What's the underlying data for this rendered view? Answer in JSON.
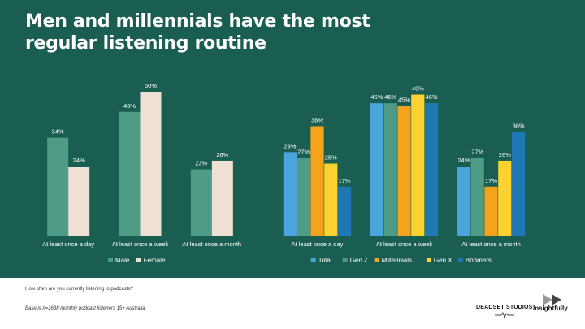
{
  "title": "Men and millennials have the most regular listening routine",
  "footer": {
    "question": "How often are you currently listening to podcasts?",
    "base": "Base is n=1638 monthly podcast listeners 15+ Australia"
  },
  "logos": {
    "deadset": "DEADSET STUDIOS",
    "insightfully": "Insightfully"
  },
  "colors": {
    "background": "#1a5e52",
    "male": "#4e9b86",
    "female": "#efe0d6",
    "total": "#4aa5dc",
    "genz": "#4e9b86",
    "millennials": "#f5a31c",
    "genx": "#fbd22f",
    "boomers": "#1f78b4"
  },
  "chart_data": [
    {
      "type": "bar",
      "categories": [
        "At least once a day",
        "At least once a week",
        "At least once a month"
      ],
      "series": [
        {
          "name": "Male",
          "values": [
            34,
            43,
            23
          ]
        },
        {
          "name": "Female",
          "values": [
            24,
            50,
            26
          ]
        }
      ],
      "value_format": "percent",
      "legend": "bottom"
    },
    {
      "type": "bar",
      "categories": [
        "At least once a day",
        "At least once a week",
        "At least once a month"
      ],
      "series": [
        {
          "name": "Total",
          "values": [
            29,
            46,
            24
          ]
        },
        {
          "name": "Gen Z",
          "values": [
            27,
            46,
            27
          ]
        },
        {
          "name": "Millennials",
          "values": [
            38,
            45,
            17
          ]
        },
        {
          "name": "Gen X",
          "values": [
            25,
            49,
            26
          ]
        },
        {
          "name": "Boomers",
          "values": [
            17,
            46,
            36
          ]
        }
      ],
      "value_format": "percent",
      "legend": "bottom"
    }
  ]
}
